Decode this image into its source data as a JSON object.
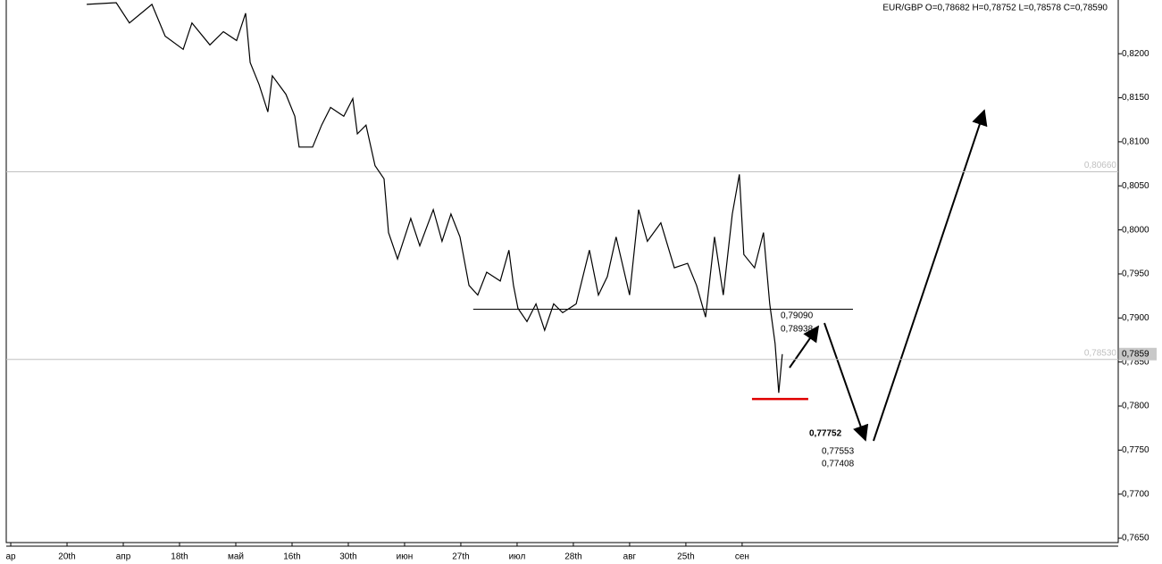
{
  "chart_data": {
    "type": "line",
    "title": "EUR/GBP O=0,78682 H=0,78752 L=0,78578 C=0,78590",
    "x": [
      2.7,
      3.75,
      4.22,
      5.02,
      5.49,
      6.13,
      6.44,
      7.08,
      7.56,
      8.03,
      8.35,
      8.51,
      8.83,
      9.14,
      9.3,
      9.78,
      10.1,
      10.25,
      10.73,
      11.05,
      11.37,
      11.84,
      12.16,
      12.32,
      12.63,
      12.95,
      13.27,
      13.43,
      13.75,
      14.22,
      14.54,
      15.02,
      15.33,
      15.65,
      15.97,
      16.29,
      16.6,
      16.92,
      17.4,
      17.71,
      17.87,
      18.03,
      18.35,
      18.67,
      18.98,
      19.3,
      19.62,
      20.1,
      20.57,
      20.89,
      21.21,
      21.52,
      22.0,
      22.32,
      22.63,
      23.11,
      23.59,
      24.06,
      24.38,
      24.7,
      25.02,
      25.33,
      25.65,
      25.9,
      26.06,
      26.44,
      26.76,
      26.98,
      27.17,
      27.3,
      27.43
    ],
    "series": [
      {
        "color": "#000000",
        "values": [
          0.8256,
          0.8258,
          0.8235,
          0.8256,
          0.822,
          0.8205,
          0.8235,
          0.821,
          0.8225,
          0.8215,
          0.8246,
          0.819,
          0.8165,
          0.8134,
          0.8175,
          0.8154,
          0.8129,
          0.8094,
          0.8094,
          0.8119,
          0.8139,
          0.8129,
          0.8149,
          0.8109,
          0.8119,
          0.8073,
          0.8058,
          0.7997,
          0.7967,
          0.8013,
          0.7982,
          0.8023,
          0.7987,
          0.8018,
          0.7992,
          0.7937,
          0.7926,
          0.7952,
          0.7942,
          0.7977,
          0.7937,
          0.7911,
          0.7896,
          0.7916,
          0.7886,
          0.7916,
          0.7906,
          0.7916,
          0.7977,
          0.7926,
          0.7947,
          0.7992,
          0.7926,
          0.8023,
          0.7987,
          0.8008,
          0.7957,
          0.7962,
          0.7937,
          0.7901,
          0.7992,
          0.7926,
          0.8018,
          0.8063,
          0.7972,
          0.7957,
          0.7997,
          0.7916,
          0.7871,
          0.7815,
          0.7859
        ]
      }
    ],
    "xlim": [
      -0.16,
      39.37
    ],
    "xticks": [
      {
        "value": 0,
        "label": "ар"
      },
      {
        "value": 2,
        "label": "20th"
      },
      {
        "value": 4,
        "label": "апр"
      },
      {
        "value": 6,
        "label": "18th"
      },
      {
        "value": 8,
        "label": "май"
      },
      {
        "value": 10,
        "label": "16th"
      },
      {
        "value": 12,
        "label": "30th"
      },
      {
        "value": 14,
        "label": "июн"
      },
      {
        "value": 16,
        "label": "27th"
      },
      {
        "value": 18,
        "label": "июл"
      },
      {
        "value": 20,
        "label": "28th"
      },
      {
        "value": 22,
        "label": "авг"
      },
      {
        "value": 24,
        "label": "25th"
      },
      {
        "value": 26,
        "label": "сен"
      }
    ],
    "ylim": [
      0.7645,
      0.8261
    ],
    "yticks": [
      {
        "value": 0.765,
        "label": "0,7650"
      },
      {
        "value": 0.77,
        "label": "0,7700"
      },
      {
        "value": 0.775,
        "label": "0,7750"
      },
      {
        "value": 0.78,
        "label": "0,7800"
      },
      {
        "value": 0.785,
        "label": "0,7850"
      },
      {
        "value": 0.79,
        "label": "0,7900"
      },
      {
        "value": 0.795,
        "label": "0,7950"
      },
      {
        "value": 0.8,
        "label": "0,8000"
      },
      {
        "value": 0.805,
        "label": "0,8050"
      },
      {
        "value": 0.81,
        "label": "0,8100"
      },
      {
        "value": 0.815,
        "label": "0,8150"
      },
      {
        "value": 0.82,
        "label": "0,8200"
      }
    ],
    "hlines": [
      {
        "value": 0.8066,
        "label": "0,80660",
        "color": "#c0c0c0"
      },
      {
        "value": 0.7853,
        "label": "0,78530",
        "color": "#c0c0c0"
      }
    ],
    "segments": [
      {
        "value": 0.791,
        "x": [
          16.44,
          29.94
        ],
        "color": "#000000"
      },
      {
        "value": 0.7808,
        "x": [
          26.35,
          28.35
        ],
        "color": "#e00000"
      }
    ],
    "last_price": {
      "value": 0.7859,
      "label": "0,7859"
    },
    "annotations": [
      "0,79090",
      "0,78938",
      "0,77752",
      "0,77553",
      "0,77408"
    ]
  }
}
